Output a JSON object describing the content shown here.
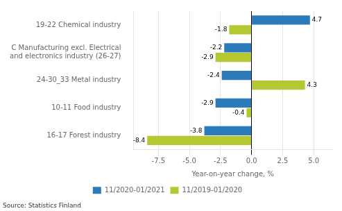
{
  "chart_data": {
    "type": "bar",
    "orientation": "horizontal",
    "categories": [
      "16-17 Forest industry",
      "10-11 Food industry",
      "24-30_33 Metal industry",
      "C Manufacturing excl. Electrical\nand electronics industry (26-27)",
      "19-22 Chemical industry"
    ],
    "series": [
      {
        "name": "11/2020-01/2021",
        "color": "#2b7bba",
        "values": [
          -3.8,
          -2.9,
          -2.4,
          -2.2,
          4.7
        ]
      },
      {
        "name": "11/2019-01/2020",
        "color": "#b5c832",
        "values": [
          -8.4,
          -0.4,
          4.3,
          -2.9,
          -1.8
        ]
      }
    ],
    "xlabel": "Year-on-year change, %",
    "xlim": [
      -9.5,
      6.5
    ],
    "xticks": [
      -7.5,
      {
        "value": -5.0,
        "label": "-5.0"
      },
      -2.5,
      {
        "value": 0.0,
        "label": "0.0"
      },
      2.5,
      {
        "value": 5.0,
        "label": "5.0"
      }
    ],
    "grid": true,
    "legend": "bottom",
    "data_labels": true,
    "source": "Source: Statistics Finland"
  }
}
